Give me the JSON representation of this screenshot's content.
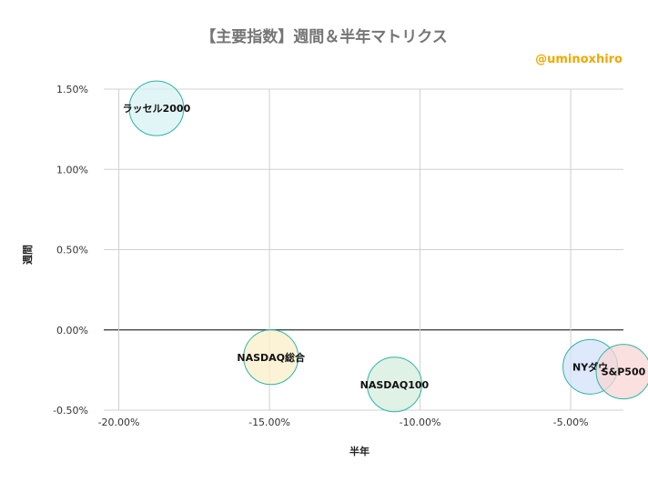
{
  "chart_data": {
    "type": "bubble",
    "title": "【主要指数】週間＆半年マトリクス",
    "credit": "@uminoxhiro",
    "xlabel": "半年",
    "ylabel": "週間",
    "xlim": [
      -0.205,
      -0.0325
    ],
    "ylim": [
      -0.005,
      0.015
    ],
    "x_ticks": [
      "-20.00%",
      "-15.00%",
      "-10.00%",
      "-5.00%"
    ],
    "x_tick_values": [
      -0.2,
      -0.15,
      -0.1,
      -0.05
    ],
    "y_ticks": [
      "-0.50%",
      "0.00%",
      "0.50%",
      "1.00%",
      "1.50%"
    ],
    "y_tick_values": [
      -0.005,
      0.0,
      0.005,
      0.01,
      0.015
    ],
    "grid": true,
    "points": [
      {
        "label": "ラッセル2000",
        "x": -0.1875,
        "y": 0.0138,
        "color": "#d8f1f3"
      },
      {
        "label": "NASDAQ総合",
        "x": -0.1495,
        "y": -0.0017,
        "color": "#fbefc9"
      },
      {
        "label": "NASDAQ100",
        "x": -0.1085,
        "y": -0.0034,
        "color": "#d6ecdd"
      },
      {
        "label": "NYダウ",
        "x": -0.0435,
        "y": -0.0023,
        "color": "#d3e1fb"
      },
      {
        "label": "S&P500",
        "x": -0.0325,
        "y": -0.0026,
        "color": "#f8d5d4"
      }
    ]
  }
}
